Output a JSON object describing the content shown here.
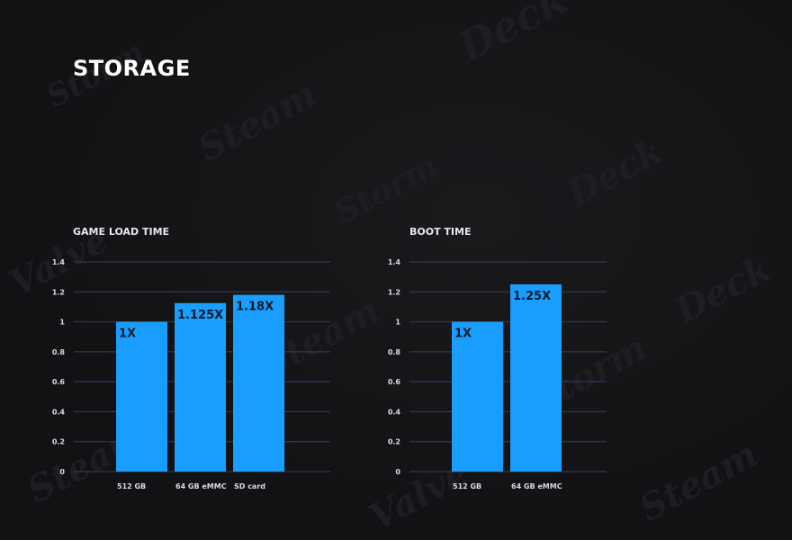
{
  "page": {
    "title": "STORAGE"
  },
  "colors": {
    "background": "#141416",
    "bar": "#199eff",
    "grid": "#2a3a52",
    "title": "#ffffff"
  },
  "chart_data": [
    {
      "type": "bar",
      "title": "GAME LOAD TIME",
      "categories": [
        "512 GB",
        "64 GB eMMC",
        "SD card"
      ],
      "values": [
        1,
        1.125,
        1.18
      ],
      "data_labels": [
        "1X",
        "1.125X",
        "1.18X"
      ],
      "ylim": [
        0,
        1.4
      ],
      "yticks": [
        "0",
        "0.2",
        "0.4",
        "0.6",
        "0.8",
        "1",
        "1.2",
        "1.4"
      ],
      "grid": true,
      "xlabel": "",
      "ylabel": ""
    },
    {
      "type": "bar",
      "title": "BOOT TIME",
      "categories": [
        "512 GB",
        "64 GB eMMC"
      ],
      "values": [
        1,
        1.25
      ],
      "data_labels": [
        "1X",
        "1.25X"
      ],
      "ylim": [
        0,
        1.4
      ],
      "yticks": [
        "0",
        "0.2",
        "0.4",
        "0.6",
        "0.8",
        "1",
        "1.2",
        "1.4"
      ],
      "grid": true,
      "xlabel": "",
      "ylabel": ""
    }
  ]
}
